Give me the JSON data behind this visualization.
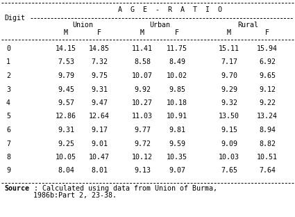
{
  "header_top": "A  G  E  -  R  A  T  I  O",
  "col_groups": [
    "Union",
    "Urban",
    "Rural"
  ],
  "col_subheaders": [
    "M",
    "F",
    "M",
    "F",
    "M",
    "F"
  ],
  "digit_label": "Digit",
  "digits": [
    "0",
    "1",
    "2",
    "3",
    "4",
    "5",
    "6",
    "7",
    "8",
    "9"
  ],
  "data": [
    [
      "14.15",
      "14.85",
      "11.41",
      "11.75",
      "15.11",
      "15.94"
    ],
    [
      "7.53",
      "7.32",
      "8.58",
      "8.49",
      "7.17",
      "6.92"
    ],
    [
      "9.79",
      "9.75",
      "10.07",
      "10.02",
      "9.70",
      "9.65"
    ],
    [
      "9.45",
      "9.31",
      "9.92",
      "9.85",
      "9.29",
      "9.12"
    ],
    [
      "9.57",
      "9.47",
      "10.27",
      "10.18",
      "9.32",
      "9.22"
    ],
    [
      "12.86",
      "12.64",
      "11.03",
      "10.91",
      "13.50",
      "13.24"
    ],
    [
      "9.31",
      "9.17",
      "9.77",
      "9.81",
      "9.15",
      "8.94"
    ],
    [
      "9.25",
      "9.01",
      "9.72",
      "9.59",
      "9.09",
      "8.82"
    ],
    [
      "10.05",
      "10.47",
      "10.12",
      "10.35",
      "10.03",
      "10.51"
    ],
    [
      "8.04",
      "8.01",
      "9.13",
      "9.07",
      "7.65",
      "7.64"
    ]
  ],
  "source_bold": "Source",
  "source_rest": " : Calculated using data from Union of Burma,",
  "source_line2": "       1986b:Part 2, 23-38.",
  "bg_color": "#ffffff",
  "font_size": 7.2,
  "mono_font": "DejaVu Sans Mono"
}
